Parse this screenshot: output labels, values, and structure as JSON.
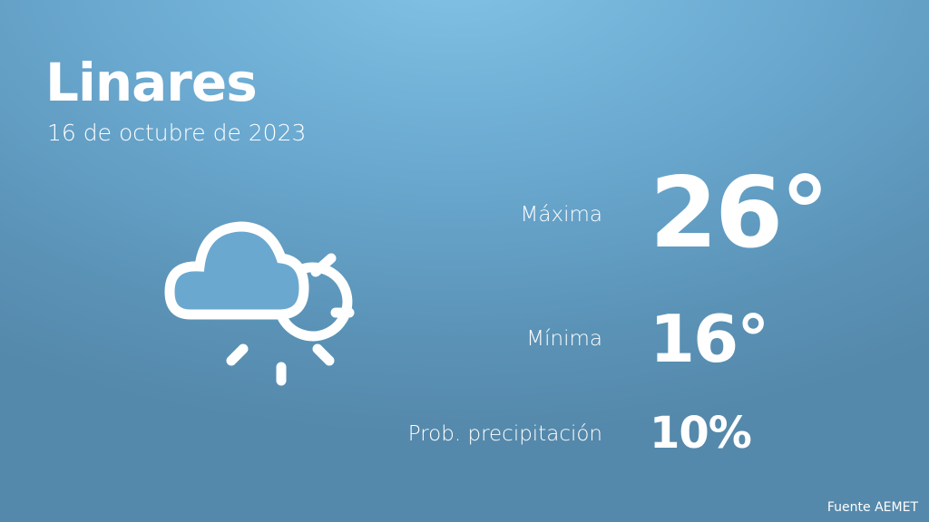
{
  "city": "Linares",
  "date": "16 de octubre de 2023",
  "weather_icon": "cloud-sun-icon",
  "max": {
    "label": "Máxima",
    "value": "26°"
  },
  "min": {
    "label": "Mínima",
    "value": "16°"
  },
  "precip": {
    "label": "Prob. precipitación",
    "value": "10%"
  },
  "source": "Fuente AEMET"
}
